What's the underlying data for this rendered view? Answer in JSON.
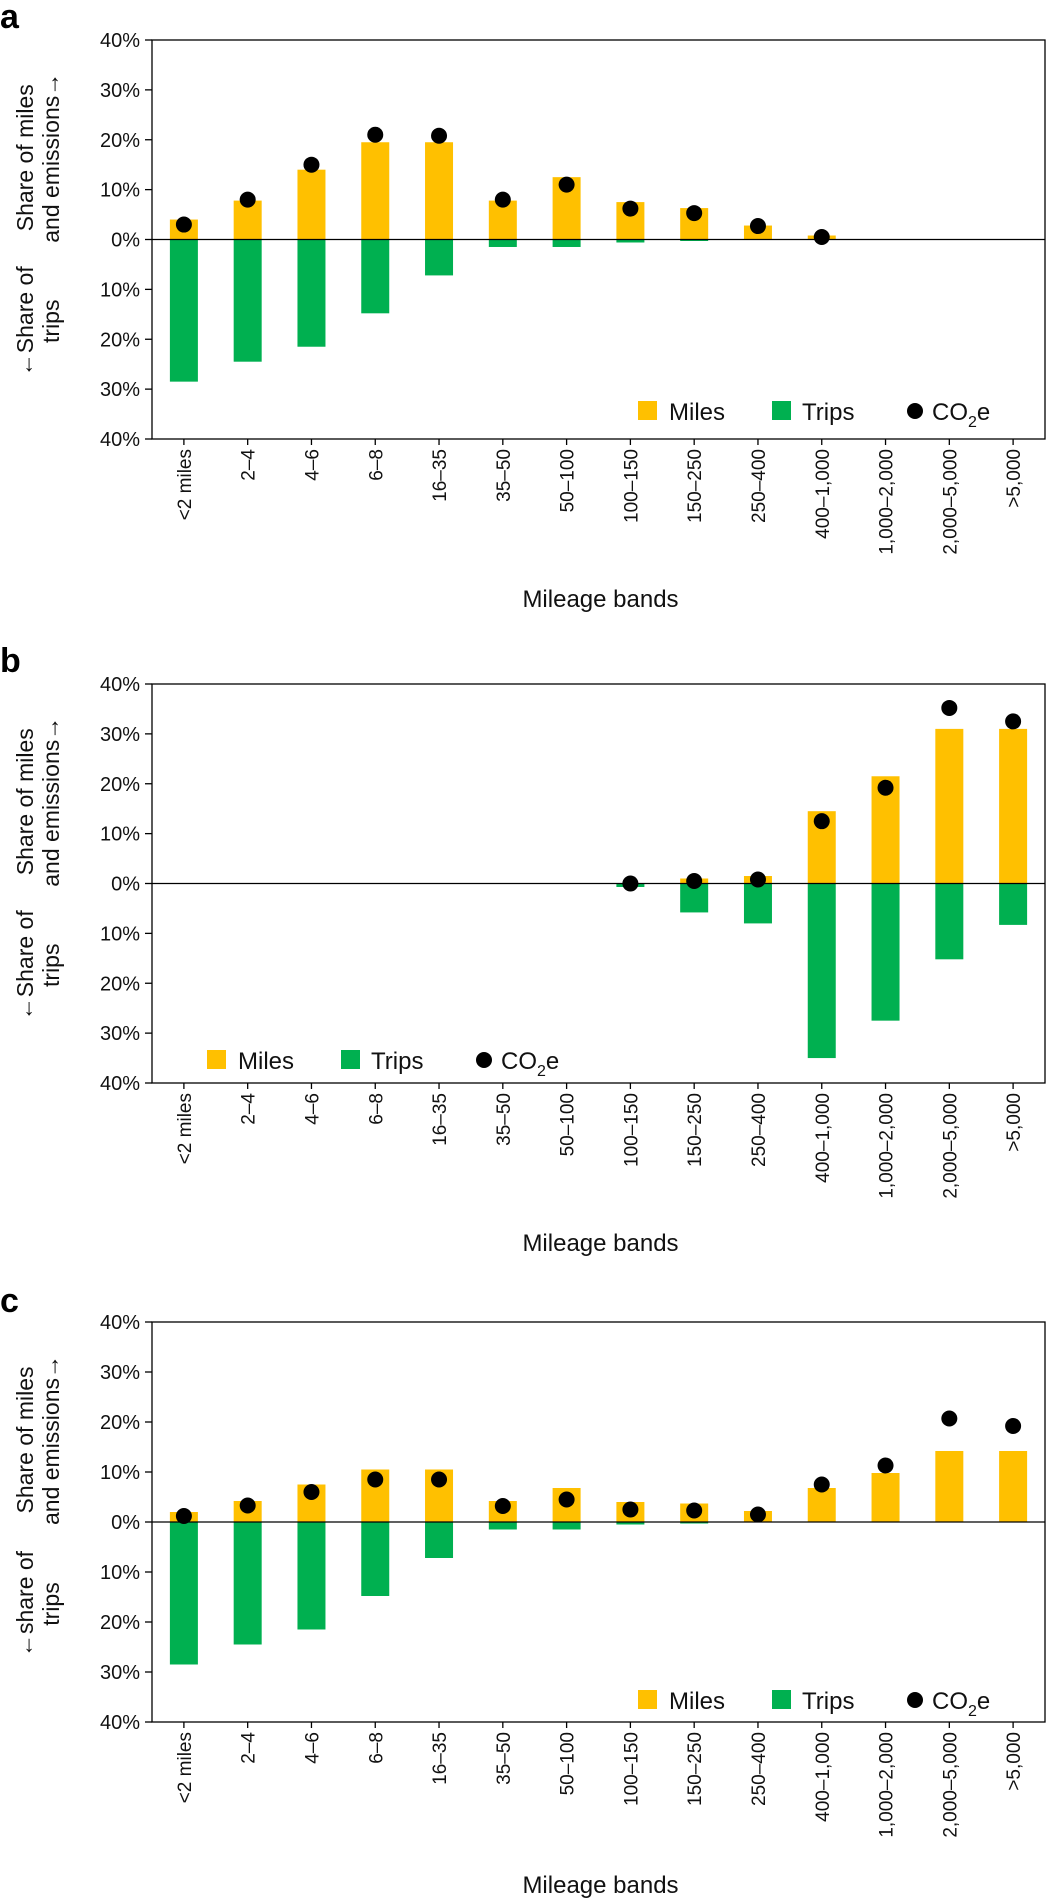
{
  "colors": {
    "miles": "#FFC000",
    "trips": "#00B050",
    "co2e": "#000000"
  },
  "chart_data": [
    {
      "panel": "a",
      "type": "bar",
      "categories": [
        "<2 miles",
        "2–4",
        "4–6",
        "6–8",
        "16–35",
        "35–50",
        "50–100",
        "100–150",
        "150–250",
        "250–400",
        "400–1,000",
        "1,000–2,000",
        "2,000–5,000",
        ">5,000"
      ],
      "series": [
        {
          "name": "Miles",
          "direction": "up",
          "values": [
            4,
            7.8,
            14,
            19.5,
            19.5,
            7.8,
            12.5,
            7.5,
            6.3,
            2.8,
            0.8,
            0,
            0,
            0
          ]
        },
        {
          "name": "Trips",
          "direction": "down",
          "values": [
            28.5,
            24.5,
            21.5,
            14.8,
            7.2,
            1.5,
            1.5,
            0.6,
            0.3,
            0,
            0,
            0,
            0,
            0
          ]
        },
        {
          "name": "CO2e",
          "direction": "up",
          "type": "scatter",
          "values": [
            3,
            8,
            15,
            21,
            20.8,
            8,
            11,
            6.2,
            5.3,
            2.7,
            0.5,
            null,
            null,
            null
          ]
        }
      ],
      "ylabel_top": "Share of miles and emissions→",
      "ylabel_top_lines": [
        "Share of miles",
        "and emissions→"
      ],
      "ylabel_bottom": "←Share of trips",
      "ylabel_bottom_lines": [
        "←Share of",
        "trips"
      ],
      "xlabel": "Mileage bands",
      "yticks": [
        "40%",
        "30%",
        "20%",
        "10%",
        "0%",
        "10%",
        "20%",
        "30%",
        "40%"
      ],
      "ylim": [
        -40,
        40
      ],
      "legend_position": "bottom-right",
      "legend": {
        "miles": "Miles",
        "trips": "Trips",
        "co2_main": "CO",
        "co2_sub": "2",
        "co2_tail": "e"
      }
    },
    {
      "panel": "b",
      "type": "bar",
      "categories": [
        "<2 miles",
        "2–4",
        "4–6",
        "6–8",
        "16–35",
        "35–50",
        "50–100",
        "100–150",
        "150–250",
        "250–400",
        "400–1,000",
        "1,000–2,000",
        "2,000–5,000",
        ">5,000"
      ],
      "series": [
        {
          "name": "Miles",
          "direction": "up",
          "values": [
            0,
            0,
            0,
            0,
            0,
            0,
            0,
            0,
            1,
            1.5,
            14.5,
            21.5,
            31,
            31
          ]
        },
        {
          "name": "Trips",
          "direction": "down",
          "values": [
            0,
            0,
            0,
            0,
            0,
            0,
            0,
            0.7,
            5.8,
            8,
            35,
            27.5,
            15.2,
            8.3
          ]
        },
        {
          "name": "CO2e",
          "direction": "up",
          "type": "scatter",
          "values": [
            null,
            null,
            null,
            null,
            null,
            null,
            null,
            0,
            0.5,
            0.8,
            12.5,
            19.2,
            35.2,
            32.5
          ]
        }
      ],
      "ylabel_top": "Share of miles and emissions→",
      "ylabel_top_lines": [
        "Share of miles",
        "and emissions→"
      ],
      "ylabel_bottom": "←Share of trips",
      "ylabel_bottom_lines": [
        "←Share of",
        "trips"
      ],
      "xlabel": "Mileage bands",
      "yticks": [
        "40%",
        "30%",
        "20%",
        "10%",
        "0%",
        "10%",
        "20%",
        "30%",
        "40%"
      ],
      "ylim": [
        -40,
        40
      ],
      "legend_position": "bottom-left",
      "legend": {
        "miles": "Miles",
        "trips": "Trips",
        "co2_main": "CO",
        "co2_sub": "2",
        "co2_tail": "e"
      }
    },
    {
      "panel": "c",
      "type": "bar",
      "categories": [
        "<2 miles",
        "2–4",
        "4–6",
        "6–8",
        "16–35",
        "35–50",
        "50–100",
        "100–150",
        "150–250",
        "250–400",
        "400–1,000",
        "1,000–2,000",
        "2,000–5,000",
        ">5,000"
      ],
      "series": [
        {
          "name": "Miles",
          "direction": "up",
          "values": [
            2,
            4.2,
            7.5,
            10.5,
            10.5,
            4.2,
            6.8,
            4,
            3.7,
            2.2,
            6.8,
            9.8,
            14.2,
            14.2
          ]
        },
        {
          "name": "Trips",
          "direction": "down",
          "values": [
            28.5,
            24.5,
            21.5,
            14.8,
            7.2,
            1.5,
            1.5,
            0.5,
            0.3,
            0,
            0,
            0,
            0,
            0
          ]
        },
        {
          "name": "CO2e",
          "direction": "up",
          "type": "scatter",
          "values": [
            1.2,
            3.3,
            6,
            8.5,
            8.5,
            3.2,
            4.5,
            2.5,
            2.3,
            1.5,
            7.5,
            11.3,
            20.7,
            19.2
          ]
        }
      ],
      "ylabel_top": "Share of miles and emissions→",
      "ylabel_top_lines": [
        "Share of miles",
        "and emissions→"
      ],
      "ylabel_bottom": "←share of trips",
      "ylabel_bottom_lines": [
        "←share of",
        "trips"
      ],
      "xlabel": "Mileage bands",
      "yticks": [
        "40%",
        "30%",
        "20%",
        "10%",
        "0%",
        "10%",
        "20%",
        "30%",
        "40%"
      ],
      "ylim": [
        -40,
        40
      ],
      "legend_position": "bottom-right",
      "legend": {
        "miles": "Miles",
        "trips": "Trips",
        "co2_main": "CO",
        "co2_sub": "2",
        "co2_tail": "e"
      }
    }
  ]
}
